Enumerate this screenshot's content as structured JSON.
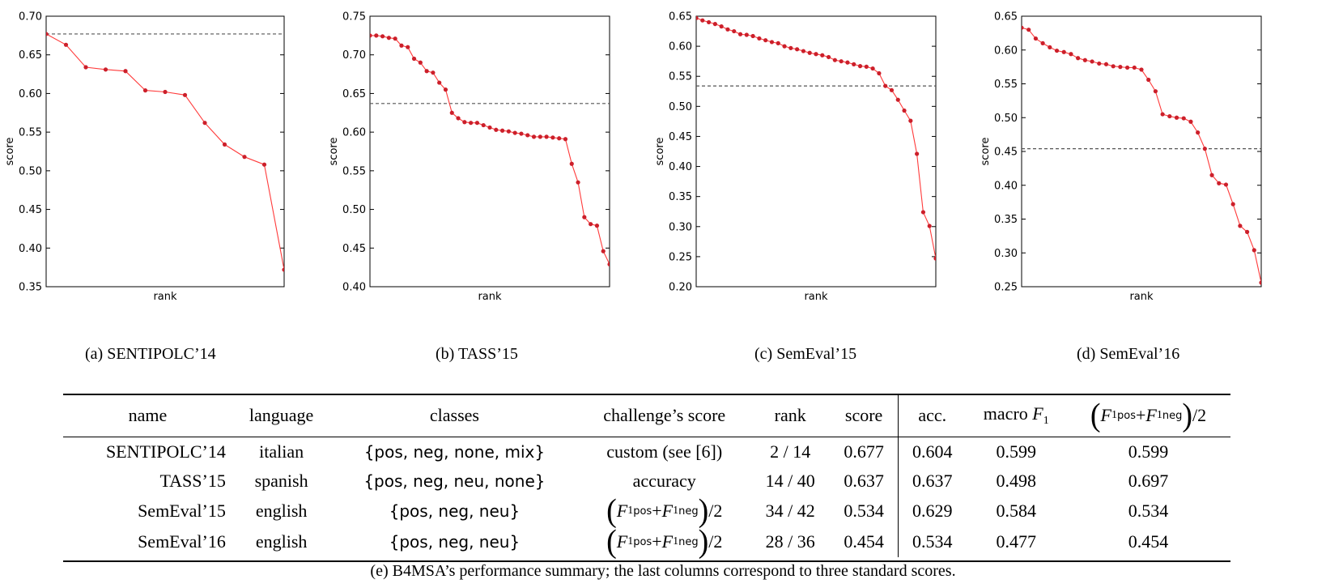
{
  "chart_data": [
    {
      "type": "line",
      "caption": "(a)  SENTIPOLC’14",
      "xlabel": "rank",
      "ylabel": "score",
      "ylim": [
        0.35,
        0.7
      ],
      "yticks": [
        "0.35",
        "0.40",
        "0.45",
        "0.50",
        "0.55",
        "0.60",
        "0.65",
        "0.70"
      ],
      "baseline": 0.677,
      "values": [
        0.677,
        0.663,
        0.634,
        0.631,
        0.629,
        0.604,
        0.602,
        0.598,
        0.562,
        0.534,
        0.518,
        0.508,
        0.372
      ]
    },
    {
      "type": "line",
      "caption": "(b)  TASS’15",
      "xlabel": "rank",
      "ylabel": "score",
      "ylim": [
        0.4,
        0.75
      ],
      "yticks": [
        "0.40",
        "0.45",
        "0.50",
        "0.55",
        "0.60",
        "0.65",
        "0.70",
        "0.75"
      ],
      "baseline": 0.637,
      "values": [
        0.725,
        0.725,
        0.724,
        0.722,
        0.721,
        0.712,
        0.71,
        0.695,
        0.69,
        0.679,
        0.677,
        0.664,
        0.655,
        0.625,
        0.618,
        0.613,
        0.612,
        0.612,
        0.609,
        0.606,
        0.603,
        0.602,
        0.601,
        0.599,
        0.598,
        0.596,
        0.594,
        0.594,
        0.594,
        0.593,
        0.592,
        0.591,
        0.559,
        0.535,
        0.49,
        0.481,
        0.479,
        0.446,
        0.429
      ]
    },
    {
      "type": "line",
      "caption": "(c)  SemEval’15",
      "xlabel": "rank",
      "ylabel": "score",
      "ylim": [
        0.2,
        0.65
      ],
      "yticks": [
        "0.20",
        "0.25",
        "0.30",
        "0.35",
        "0.40",
        "0.45",
        "0.50",
        "0.55",
        "0.60",
        "0.65"
      ],
      "baseline": 0.534,
      "values": [
        0.647,
        0.643,
        0.64,
        0.637,
        0.633,
        0.628,
        0.625,
        0.62,
        0.619,
        0.617,
        0.613,
        0.61,
        0.607,
        0.605,
        0.6,
        0.597,
        0.595,
        0.592,
        0.589,
        0.587,
        0.585,
        0.582,
        0.577,
        0.575,
        0.573,
        0.57,
        0.567,
        0.566,
        0.563,
        0.555,
        0.534,
        0.527,
        0.511,
        0.493,
        0.476,
        0.421,
        0.324,
        0.301,
        0.247
      ]
    },
    {
      "type": "line",
      "caption": "(d)  SemEval’16",
      "xlabel": "rank",
      "ylabel": "score",
      "ylim": [
        0.25,
        0.65
      ],
      "yticks": [
        "0.25",
        "0.30",
        "0.35",
        "0.40",
        "0.45",
        "0.50",
        "0.55",
        "0.60",
        "0.65"
      ],
      "baseline": 0.454,
      "values": [
        0.633,
        0.63,
        0.617,
        0.61,
        0.604,
        0.599,
        0.597,
        0.594,
        0.588,
        0.585,
        0.583,
        0.58,
        0.579,
        0.576,
        0.575,
        0.574,
        0.574,
        0.571,
        0.556,
        0.539,
        0.505,
        0.502,
        0.5,
        0.499,
        0.494,
        0.478,
        0.454,
        0.415,
        0.403,
        0.401,
        0.372,
        0.34,
        0.331,
        0.304,
        0.256
      ]
    }
  ],
  "table": {
    "headers": {
      "name": "name",
      "language": "language",
      "classes": "classes",
      "challenge_score": "challenge’s score",
      "rank": "rank",
      "score": "score",
      "acc": "acc.",
      "macro": "macro",
      "macro_f": "F",
      "macro_sub": "1",
      "f_open": "(",
      "f_letter": "F",
      "f_sub": "1",
      "f_pos": "pos",
      "f_plus": " + ",
      "f_neg": "neg",
      "f_close": ")",
      "f_div": " /2"
    },
    "rows": [
      {
        "name": "SENTIPOLC’14",
        "language": "italian",
        "classes": "{pos, neg, none, mix}",
        "challenge": "custom (see [6])",
        "rank": "2 / 14",
        "score": "0.677",
        "acc": "0.604",
        "macro_f1": "0.599",
        "avg_f1": "0.599"
      },
      {
        "name": "TASS’15",
        "language": "spanish",
        "classes": "{pos, neg, neu, none}",
        "challenge": "accuracy",
        "rank": "14 / 40",
        "score": "0.637",
        "acc": "0.637",
        "macro_f1": "0.498",
        "avg_f1": "0.697"
      },
      {
        "name": "SemEval’15",
        "language": "english",
        "classes": "{pos, neg, neu}",
        "challenge": "",
        "rank": "34 / 42",
        "score": "0.534",
        "acc": "0.629",
        "macro_f1": "0.584",
        "avg_f1": "0.534"
      },
      {
        "name": "SemEval’16",
        "language": "english",
        "classes": "{pos, neg, neu}",
        "challenge": "",
        "rank": "28 / 36",
        "score": "0.454",
        "acc": "0.534",
        "macro_f1": "0.477",
        "avg_f1": "0.454"
      }
    ],
    "caption": "(e)  B4MSA’s performance summary; the last columns correspond to three standard scores."
  },
  "colors": {
    "line": "#ff3b3b",
    "marker": "#cc1f2a",
    "baseline": "#555555"
  }
}
